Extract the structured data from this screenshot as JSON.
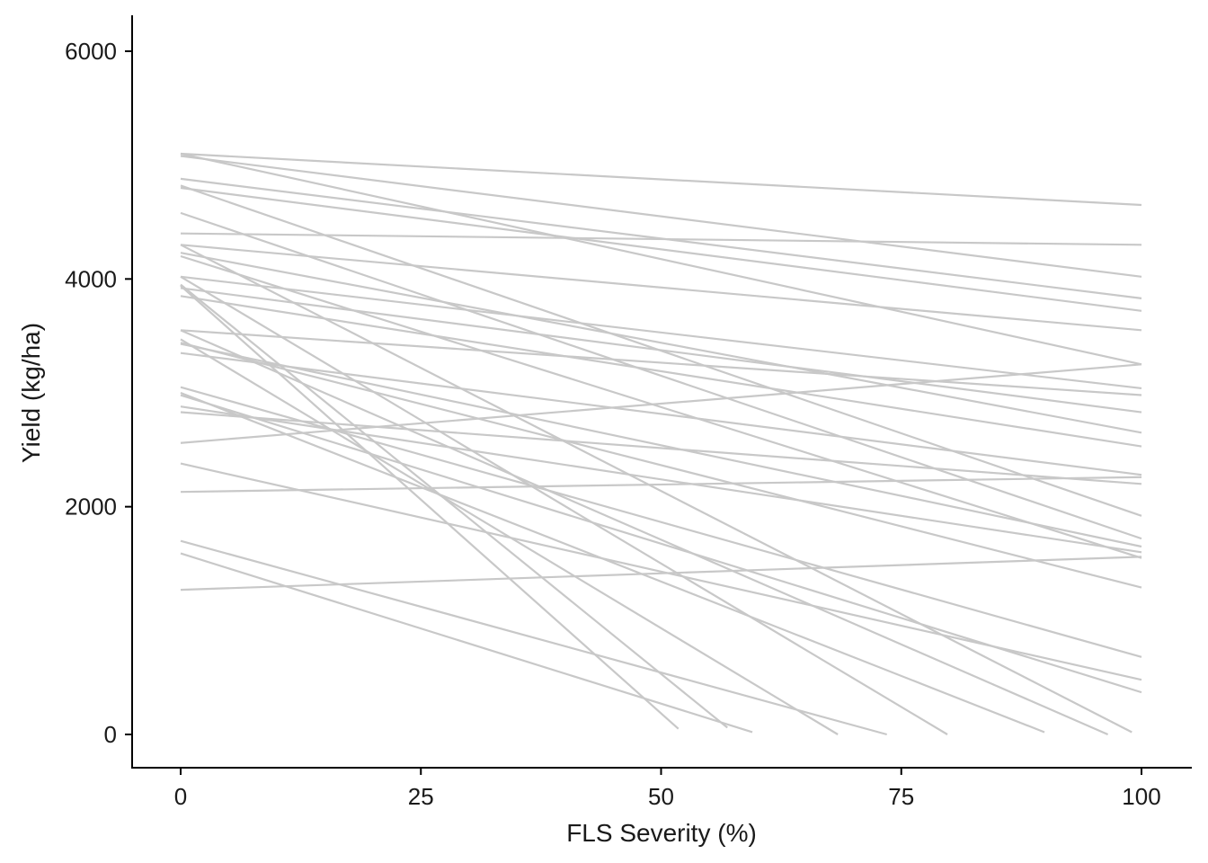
{
  "chart_data": {
    "type": "line",
    "title": "",
    "xlabel": "FLS Severity (%)",
    "ylabel": "Yield (kg/ha)",
    "xlim": [
      -5,
      105
    ],
    "ylim": [
      -300,
      6300
    ],
    "xticks": [
      0,
      25,
      50,
      75,
      100
    ],
    "yticks": [
      0,
      2000,
      4000,
      6000
    ],
    "grid": false,
    "legend": "none",
    "line_color": "#c8c8c8",
    "series": [
      {
        "x": [
          0,
          100
        ],
        "y": [
          5100,
          4650
        ]
      },
      {
        "x": [
          0,
          100
        ],
        "y": [
          4400,
          4300
        ]
      },
      {
        "x": [
          0,
          100
        ],
        "y": [
          5080,
          4020
        ]
      },
      {
        "x": [
          0,
          100
        ],
        "y": [
          4880,
          3830
        ]
      },
      {
        "x": [
          0,
          100
        ],
        "y": [
          4800,
          3720
        ]
      },
      {
        "x": [
          0,
          100
        ],
        "y": [
          4300,
          3550
        ]
      },
      {
        "x": [
          0,
          100
        ],
        "y": [
          5100,
          3250
        ]
      },
      {
        "x": [
          0,
          100
        ],
        "y": [
          4020,
          3040
        ]
      },
      {
        "x": [
          0,
          100
        ],
        "y": [
          3550,
          2980
        ]
      },
      {
        "x": [
          0,
          100
        ],
        "y": [
          3920,
          2830
        ]
      },
      {
        "x": [
          0,
          100
        ],
        "y": [
          4230,
          2650
        ]
      },
      {
        "x": [
          0,
          100
        ],
        "y": [
          3850,
          2530
        ]
      },
      {
        "x": [
          0,
          100
        ],
        "y": [
          2560,
          3250
        ]
      },
      {
        "x": [
          0,
          100
        ],
        "y": [
          4820,
          1920
        ]
      },
      {
        "x": [
          0,
          100
        ],
        "y": [
          3350,
          2280
        ]
      },
      {
        "x": [
          0,
          100
        ],
        "y": [
          2130,
          2260
        ]
      },
      {
        "x": [
          0,
          100
        ],
        "y": [
          2830,
          2200
        ]
      },
      {
        "x": [
          0,
          100
        ],
        "y": [
          4580,
          1720
        ]
      },
      {
        "x": [
          0,
          100
        ],
        "y": [
          4200,
          1550
        ]
      },
      {
        "x": [
          0,
          100
        ],
        "y": [
          3430,
          1650
        ]
      },
      {
        "x": [
          0,
          100
        ],
        "y": [
          2880,
          1600
        ]
      },
      {
        "x": [
          0,
          100
        ],
        "y": [
          3440,
          1290
        ]
      },
      {
        "x": [
          0,
          100
        ],
        "y": [
          1270,
          1560
        ]
      },
      {
        "x": [
          0,
          100
        ],
        "y": [
          3050,
          680
        ]
      },
      {
        "x": [
          0,
          100
        ],
        "y": [
          2380,
          480
        ]
      },
      {
        "x": [
          0,
          100
        ],
        "y": [
          2980,
          370
        ]
      },
      {
        "x": [
          0,
          99
        ],
        "y": [
          4300,
          20
        ]
      },
      {
        "x": [
          0,
          96.5
        ],
        "y": [
          3550,
          0
        ]
      },
      {
        "x": [
          0,
          89.9
        ],
        "y": [
          3000,
          20
        ]
      },
      {
        "x": [
          0,
          79.8
        ],
        "y": [
          4020,
          0
        ]
      },
      {
        "x": [
          0,
          73.5
        ],
        "y": [
          1700,
          0
        ]
      },
      {
        "x": [
          0,
          68.4
        ],
        "y": [
          3470,
          0
        ]
      },
      {
        "x": [
          0,
          59.5
        ],
        "y": [
          1590,
          20
        ]
      },
      {
        "x": [
          0,
          56.9
        ],
        "y": [
          3950,
          60
        ]
      },
      {
        "x": [
          0,
          51.8
        ],
        "y": [
          3940,
          50
        ]
      }
    ]
  }
}
